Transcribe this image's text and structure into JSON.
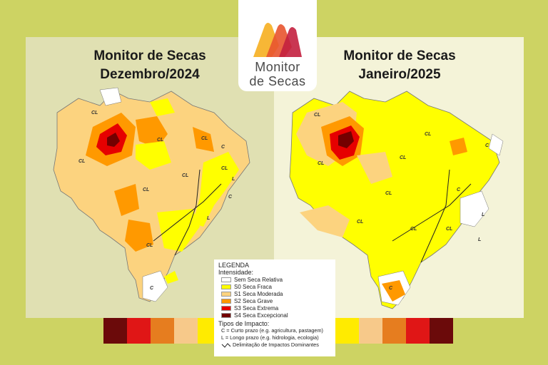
{
  "logo": {
    "line1": "Monitor",
    "line2": "de Secas",
    "colors": [
      "#f7b32b",
      "#e8542f",
      "#c3203f"
    ]
  },
  "left_map": {
    "title_line1": "Monitor de Secas",
    "title_line2": "Dezembro/2024"
  },
  "right_map": {
    "title_line1": "Monitor de Secas",
    "title_line2": "Janeiro/2025"
  },
  "map_labels": {
    "cl": "CL",
    "c": "C",
    "l": "L"
  },
  "legend": {
    "title": "LEGENDA",
    "intensity_label": "Intensidade:",
    "items": [
      {
        "label": "Sem Seca Relativa",
        "color": "#ffffff"
      },
      {
        "label": "S0 Seca Fraca",
        "color": "#ffff00"
      },
      {
        "label": "S1 Seca Moderada",
        "color": "#fcd37f"
      },
      {
        "label": "S2 Seca Grave",
        "color": "#ff9900"
      },
      {
        "label": "S3 Seca Extrema",
        "color": "#e60000"
      },
      {
        "label": "S4 Seca Excepcional",
        "color": "#730000"
      }
    ],
    "impact_title": "Tipos de Impacto:",
    "impact_short": "C = Curto prazo (e.g. agricultura, pastagem)",
    "impact_long": "L = Longo prazo (e.g. hidrologia, ecologia)",
    "impact_line": "Delimitação de Impactos Dominantes"
  },
  "strip_colors": [
    "#6b0a0a",
    "#e01616",
    "#e67d1f",
    "#f7c98a",
    "#ffeb00",
    "#ffeb00",
    "#f7c98a",
    "#e67d1f",
    "#e01616",
    "#6b0a0a"
  ]
}
